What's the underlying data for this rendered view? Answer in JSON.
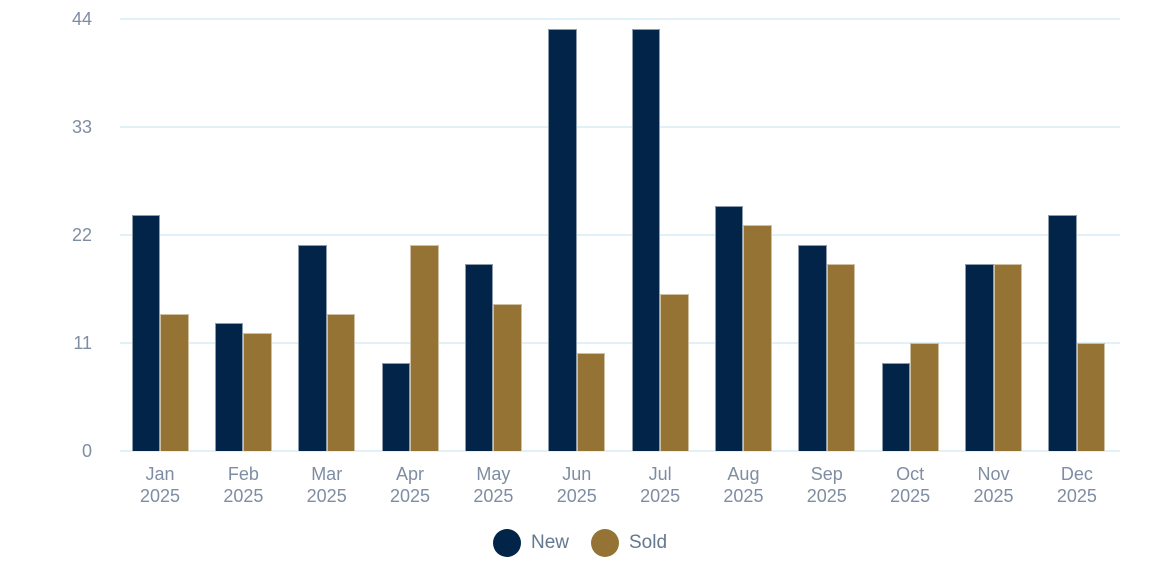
{
  "chart_data": {
    "type": "bar",
    "title": "",
    "xlabel": "",
    "ylabel": "",
    "categories": [
      "Jan 2025",
      "Feb 2025",
      "Mar 2025",
      "Apr 2025",
      "May 2025",
      "Jun 2025",
      "Jul 2025",
      "Aug 2025",
      "Sep 2025",
      "Oct 2025",
      "Nov 2025",
      "Dec 2025"
    ],
    "series": [
      {
        "name": "New",
        "color": "#032449",
        "values": [
          24,
          13,
          21,
          9,
          19,
          43,
          43,
          25,
          21,
          9,
          19,
          24
        ]
      },
      {
        "name": "Sold",
        "color": "#947335",
        "values": [
          14,
          12,
          14,
          21,
          15,
          10,
          16,
          23,
          19,
          11,
          19,
          11
        ]
      }
    ],
    "yticks": [
      0,
      11,
      22,
      33,
      44
    ],
    "ylim": [
      0,
      44
    ],
    "grid": true,
    "legend_position": "bottom"
  },
  "colors": {
    "background": "#ffffff",
    "gridline": "#e2f0f8",
    "axis_label": "#7f8da3",
    "legend_label": "#64788f"
  }
}
